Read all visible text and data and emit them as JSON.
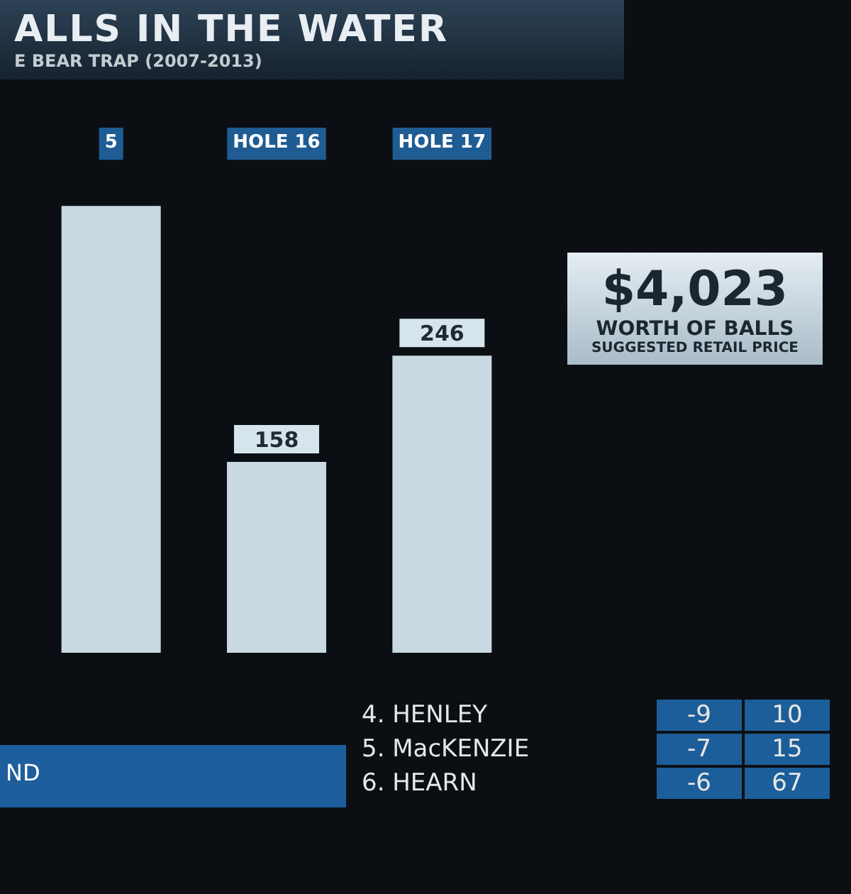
{
  "chart_data": {
    "type": "bar",
    "title": "ALLS IN THE WATER",
    "subtitle": "E BEAR TRAP (2007-2013)",
    "categories": [
      "5",
      "HOLE 16",
      "HOLE 17"
    ],
    "values": [
      370,
      158,
      246
    ],
    "value_labels": [
      null,
      "158",
      "246"
    ],
    "color": "#c9d9e2",
    "annotations": [
      "$4,023",
      "WORTH OF BALLS",
      "SUGGESTED RETAIL PRICE",
      "ND",
      "4. HENLEY",
      "-9",
      "10",
      "5. MacKENZIE",
      "-7",
      "15",
      "6. HEARN",
      "-6",
      "67"
    ]
  }
}
